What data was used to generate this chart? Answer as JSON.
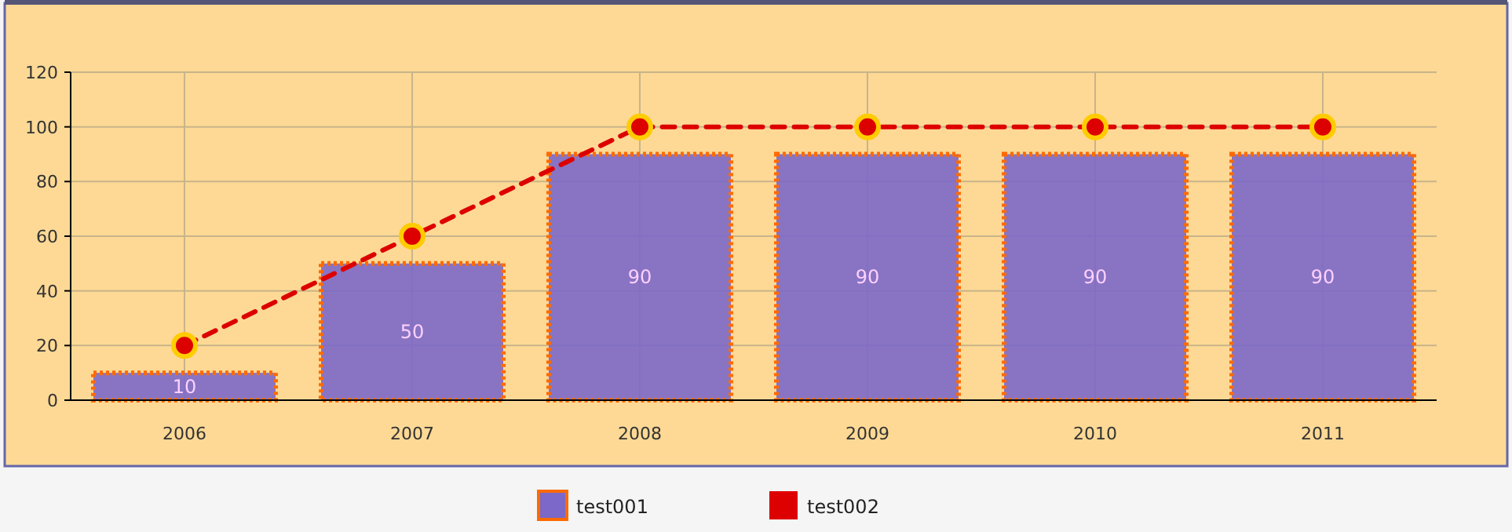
{
  "chart_data": {
    "type": "bar",
    "categories": [
      "2006",
      "2007",
      "2008",
      "2009",
      "2010",
      "2011"
    ],
    "series": [
      {
        "name": "test001",
        "color": "#7b68c8",
        "values": [
          10,
          50,
          90,
          90,
          90,
          90
        ],
        "value_labels": [
          "10",
          "50",
          "90",
          "90",
          "90",
          "90"
        ]
      },
      {
        "name": "test002",
        "type": "line",
        "color": "#dd0000",
        "values": [
          20,
          60,
          100,
          100,
          100,
          100
        ],
        "marker": "circle",
        "line_style": "dashed"
      }
    ],
    "ylim": [
      0,
      120
    ],
    "yticks": [
      0,
      20,
      40,
      60,
      80,
      100,
      120
    ],
    "grid": true,
    "legend": "bottom"
  }
}
